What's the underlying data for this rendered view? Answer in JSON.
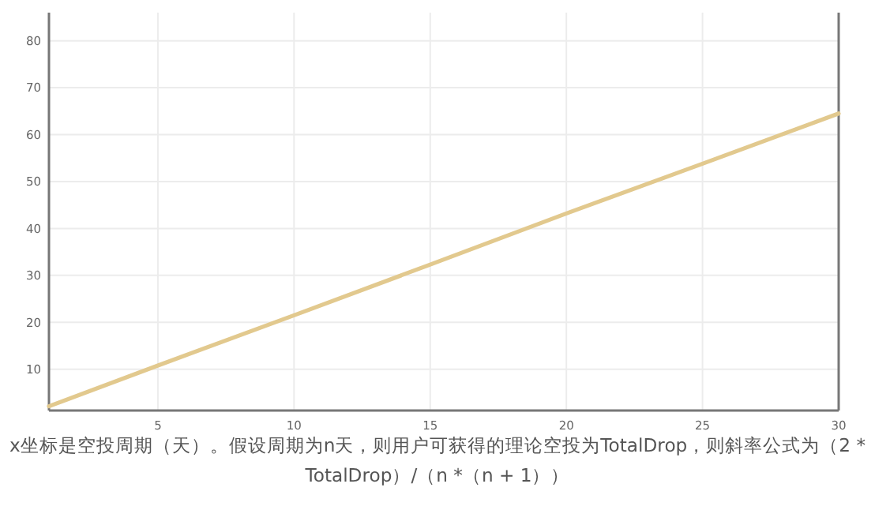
{
  "chart_data": {
    "type": "line",
    "x": [
      1,
      5,
      10,
      15,
      20,
      25,
      30
    ],
    "series": [
      {
        "color": "#e2c98e",
        "values": [
          2.1,
          10.8,
          21.5,
          32.3,
          43.2,
          53.8,
          64.5
        ]
      }
    ],
    "xlim": [
      1,
      30
    ],
    "ylim": [
      1.2,
      86
    ],
    "xticks": [
      5,
      10,
      15,
      20,
      25,
      30
    ],
    "yticks": [
      10,
      20,
      30,
      40,
      50,
      60,
      70,
      80
    ],
    "grid": true,
    "marker": "none",
    "line_style": "solid",
    "annotations": [
      "x坐标是空投周期（天）。假设周期为n天，则用户可获得的理论空投为TotalDrop，则斜率公式为（2 * TotalDrop）/（n *（n + 1））"
    ]
  }
}
